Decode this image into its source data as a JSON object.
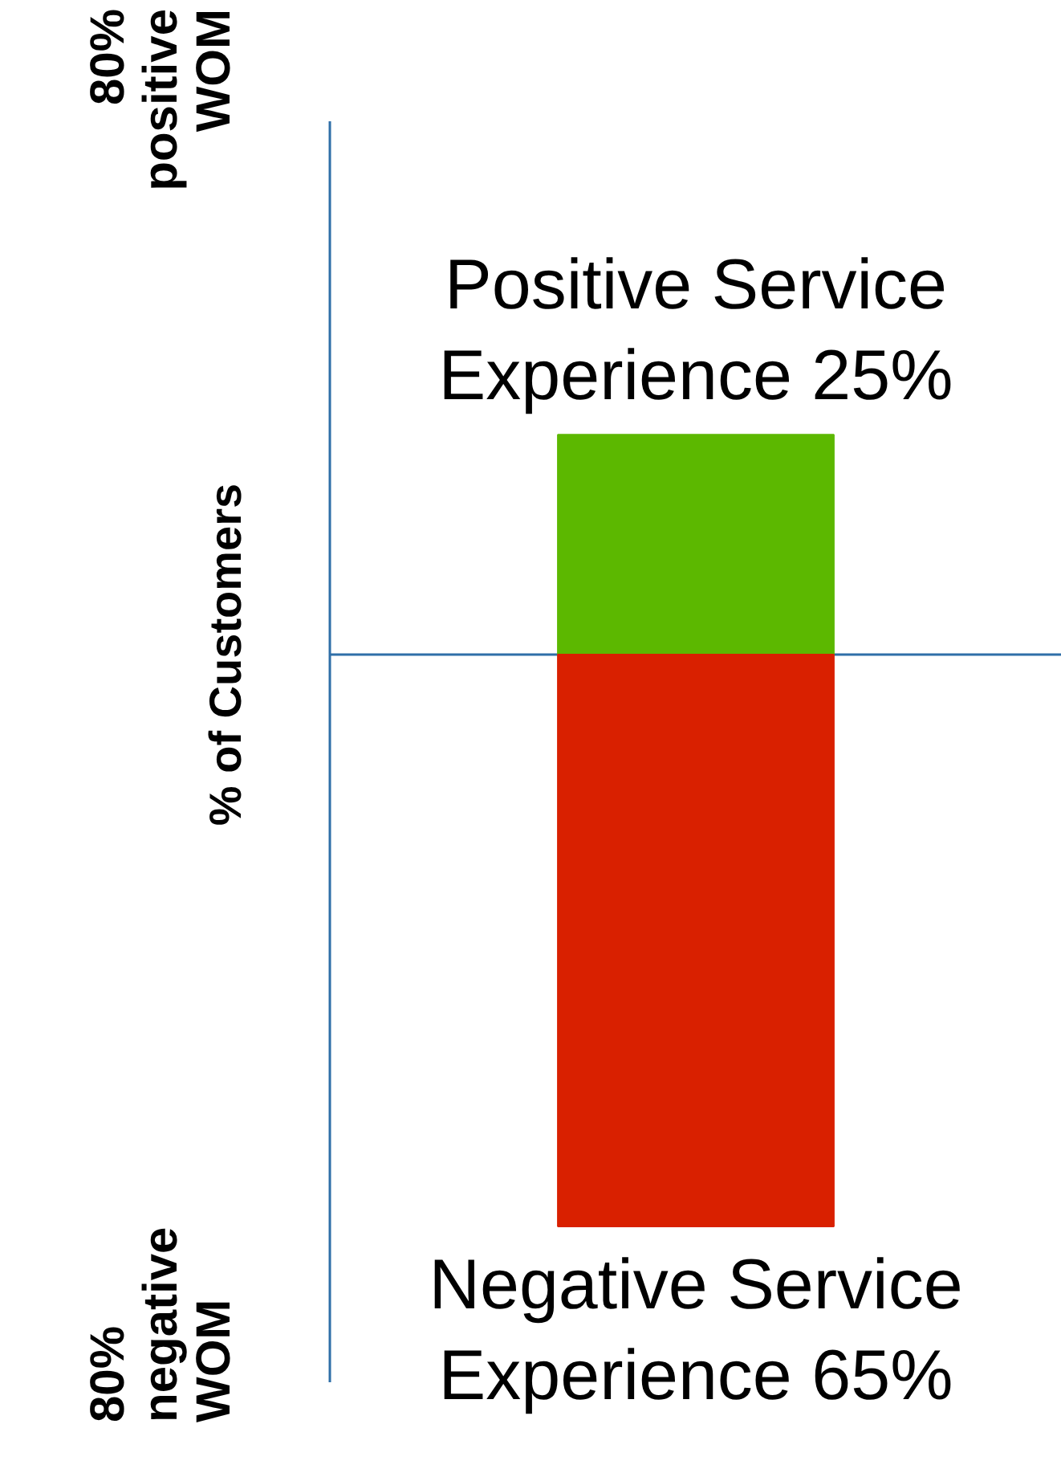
{
  "chart_data": {
    "type": "bar",
    "stacked": true,
    "categories": [
      null
    ],
    "grid": false,
    "series": [
      {
        "color": "#5cb800",
        "values": [
          25
        ],
        "value_labels": [
          "Positive Service\nExperience 25%"
        ]
      },
      {
        "color": "#d92000",
        "values": [
          -65
        ],
        "value_labels": [
          "Negative Service\nExperience 65%"
        ]
      }
    ],
    "ref_lines": [
      {
        "axis": "y",
        "value": 0,
        "color": "#2f6fa8"
      }
    ],
    "annotations": [
      "80%\npositive\nWOM",
      "% of Customers",
      "80%\nnegative\nWOM"
    ]
  }
}
